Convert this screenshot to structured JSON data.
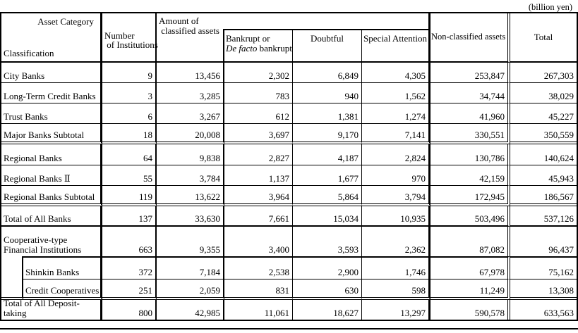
{
  "caption": "(billion yen)",
  "header": {
    "asset_category": "Asset Category",
    "classification": "Classification",
    "number_of_institutions": [
      "Number",
      " of Institutions"
    ],
    "amount_of_classified_assets": [
      "Amount of",
      " classified assets"
    ],
    "bankrupt": {
      "line1": "Bankrupt or",
      "italic": "De facto",
      "rest": " bankrupt"
    },
    "doubtful": "Doubtful",
    "special_attention": "Special Attention",
    "non_classified_assets": "Non-classified assets",
    "total": "Total"
  },
  "unit": "billion yen",
  "rows": [
    {
      "label": "City Banks",
      "indent": false,
      "values": [
        "9",
        "13,456",
        "2,302",
        "6,849",
        "4,305",
        "253,847",
        "267,303"
      ]
    },
    {
      "label": "Long-Term Credit Banks",
      "indent": false,
      "values": [
        "3",
        "3,285",
        "783",
        "940",
        "1,562",
        "34,744",
        "38,029"
      ]
    },
    {
      "label": "Trust Banks",
      "indent": false,
      "values": [
        "6",
        "3,267",
        "612",
        "1,381",
        "1,274",
        "41,960",
        "45,227"
      ]
    },
    {
      "label": "Major Banks Subtotal",
      "indent": false,
      "values": [
        "18",
        "20,008",
        "3,697",
        "9,170",
        "7,141",
        "330,551",
        "350,559"
      ]
    },
    {
      "label": "Regional Banks",
      "indent": false,
      "values": [
        "64",
        "9,838",
        "2,827",
        "4,187",
        "2,824",
        "130,786",
        "140,624"
      ]
    },
    {
      "label": "Regional Banks Ⅱ",
      "indent": false,
      "values": [
        "55",
        "3,784",
        "1,137",
        "1,677",
        "970",
        "42,159",
        "45,943"
      ]
    },
    {
      "label": "Regional Banks Subtotal",
      "indent": false,
      "values": [
        "119",
        "13,622",
        "3,964",
        "5,864",
        "3,794",
        "172,945",
        "186,567"
      ]
    },
    {
      "label": "Total of All Banks",
      "indent": false,
      "values": [
        "137",
        "33,630",
        "7,661",
        "15,034",
        "10,935",
        "503,496",
        "537,126"
      ]
    },
    {
      "label": "Cooperative-type Financial Institutions",
      "indent": false,
      "values": [
        "663",
        "9,355",
        "3,400",
        "3,593",
        "2,362",
        "87,082",
        "96,437"
      ]
    },
    {
      "label": "Shinkin Banks",
      "indent": true,
      "values": [
        "372",
        "7,184",
        "2,538",
        "2,900",
        "1,746",
        "67,978",
        "75,162"
      ]
    },
    {
      "label": "Credit Cooperatives",
      "indent": true,
      "values": [
        "251",
        "2,059",
        "831",
        "630",
        "598",
        "11,249",
        "13,308"
      ]
    },
    {
      "label": "Total of All Deposit-taking",
      "indent": false,
      "values": [
        "800",
        "42,985",
        "11,061",
        "18,627",
        "13,297",
        "590,578",
        "633,563"
      ]
    }
  ]
}
